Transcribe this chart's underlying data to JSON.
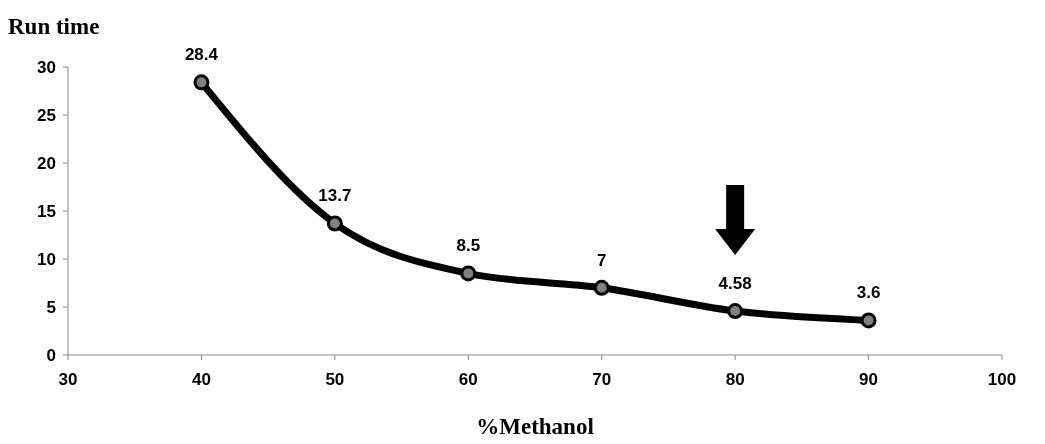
{
  "chart_data": {
    "type": "line",
    "title": "Run time",
    "xlabel": "%Methanol",
    "x": [
      40,
      50,
      60,
      70,
      80,
      90
    ],
    "series": [
      {
        "color": "#000000",
        "values": [
          28.4,
          13.7,
          8.5,
          7,
          4.58,
          3.6
        ]
      }
    ],
    "xlim": [
      30,
      100
    ],
    "xticks": [
      30,
      40,
      50,
      60,
      70,
      80,
      90,
      100
    ],
    "ylim": [
      0,
      30
    ],
    "yticks": [
      0,
      5,
      10,
      15,
      20,
      25,
      30
    ],
    "grid": false,
    "marker": "circle",
    "line_style": "solid",
    "data_labels": true
  }
}
